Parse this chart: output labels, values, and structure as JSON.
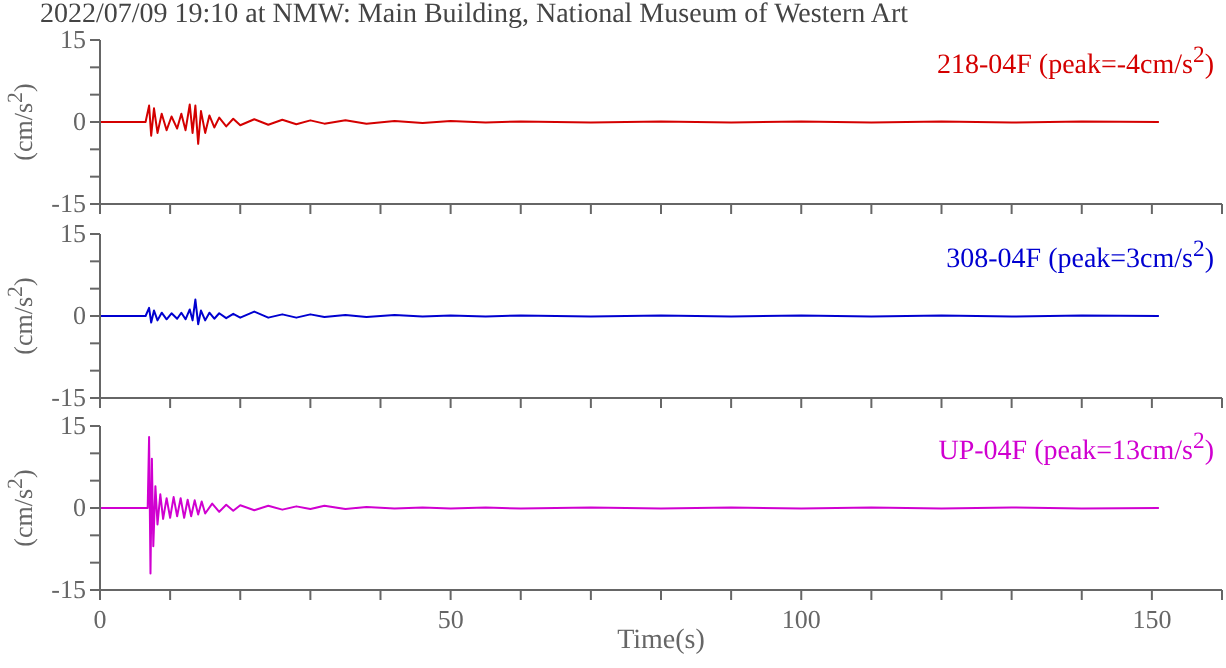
{
  "chart_data": [
    {
      "type": "line",
      "title": "2022/07/09 19:10 at NMW: Main Building, National Museum of Western Art",
      "ylabel": "(cm/s$^{2}$)",
      "xlim": [
        0,
        160
      ],
      "xticks": [
        0,
        {
          "value": 10,
          "label": null
        },
        {
          "value": 20,
          "label": null
        },
        {
          "value": 30,
          "label": null
        },
        {
          "value": 40,
          "label": null
        },
        50,
        {
          "value": 60,
          "label": null
        },
        {
          "value": 70,
          "label": null
        },
        {
          "value": 80,
          "label": null
        },
        {
          "value": 90,
          "label": null
        },
        100,
        {
          "value": 110,
          "label": null
        },
        {
          "value": 120,
          "label": null
        },
        {
          "value": 130,
          "label": null
        },
        {
          "value": 140,
          "label": null
        },
        150,
        {
          "value": 160,
          "label": null
        }
      ],
      "ylim": [
        -15,
        15
      ],
      "yticks": [
        -15,
        {
          "value": -10,
          "label": null
        },
        {
          "value": -5,
          "label": null
        },
        0,
        {
          "value": 5,
          "label": null
        },
        {
          "value": 10,
          "label": null
        },
        15
      ],
      "tick_labels": "y",
      "marker": "none",
      "line_style": "solid",
      "series": [
        {
          "name": "218-04F (peak=-4cm/s$^{2}$)",
          "color": "#d40000",
          "x": [
            0,
            6.5,
            7,
            7.3,
            7.7,
            8.2,
            8.8,
            9.5,
            10.2,
            11,
            11.6,
            12.2,
            12.8,
            13.2,
            13.6,
            14,
            14.4,
            15,
            15.6,
            16.3,
            17,
            18,
            19,
            20,
            22,
            24,
            26,
            28,
            30,
            32,
            35,
            38,
            42,
            46,
            50,
            55,
            60,
            70,
            80,
            90,
            100,
            110,
            120,
            130,
            140,
            151
          ],
          "values": [
            0,
            0,
            3,
            -2.5,
            2.5,
            -2,
            1.5,
            -1.5,
            1,
            -1.2,
            1.5,
            -1.5,
            3.2,
            -2,
            3,
            -4,
            2,
            -2,
            1.2,
            -1,
            0.8,
            -0.8,
            0.6,
            -0.6,
            0.5,
            -0.5,
            0.4,
            -0.4,
            0.3,
            -0.3,
            0.3,
            -0.3,
            0.2,
            -0.2,
            0.2,
            -0.1,
            0.1,
            -0.1,
            0.1,
            -0.1,
            0.1,
            -0.1,
            0.1,
            -0.1,
            0.1,
            0
          ]
        }
      ]
    },
    {
      "type": "line",
      "ylabel": "(cm/s$^{2}$)",
      "xlim": [
        0,
        160
      ],
      "xticks": [
        0,
        {
          "value": 10,
          "label": null
        },
        {
          "value": 20,
          "label": null
        },
        {
          "value": 30,
          "label": null
        },
        {
          "value": 40,
          "label": null
        },
        50,
        {
          "value": 60,
          "label": null
        },
        {
          "value": 70,
          "label": null
        },
        {
          "value": 80,
          "label": null
        },
        {
          "value": 90,
          "label": null
        },
        100,
        {
          "value": 110,
          "label": null
        },
        {
          "value": 120,
          "label": null
        },
        {
          "value": 130,
          "label": null
        },
        {
          "value": 140,
          "label": null
        },
        150,
        {
          "value": 160,
          "label": null
        }
      ],
      "ylim": [
        -15,
        15
      ],
      "yticks": [
        -15,
        {
          "value": -10,
          "label": null
        },
        {
          "value": -5,
          "label": null
        },
        0,
        {
          "value": 5,
          "label": null
        },
        {
          "value": 10,
          "label": null
        },
        15
      ],
      "tick_labels": "y",
      "marker": "none",
      "line_style": "solid",
      "series": [
        {
          "name": "308-04F (peak=3cm/s$^{2}$)",
          "color": "#0000d0",
          "x": [
            0,
            6.5,
            7,
            7.3,
            7.7,
            8.2,
            8.8,
            9.5,
            10.2,
            11,
            11.6,
            12.2,
            12.8,
            13.2,
            13.6,
            14,
            14.4,
            15,
            15.6,
            16.3,
            17,
            18,
            19,
            20,
            22,
            24,
            26,
            28,
            30,
            32,
            35,
            38,
            42,
            46,
            50,
            55,
            60,
            70,
            80,
            90,
            100,
            110,
            120,
            130,
            140,
            151
          ],
          "values": [
            0,
            0,
            1.5,
            -1.2,
            1,
            -0.8,
            0.6,
            -0.6,
            0.5,
            -0.5,
            0.6,
            -0.6,
            1.2,
            -0.8,
            3,
            -1.5,
            1,
            -0.8,
            0.6,
            -0.5,
            0.5,
            -0.4,
            0.4,
            -0.3,
            0.8,
            -0.3,
            0.3,
            -0.3,
            0.3,
            -0.2,
            0.2,
            -0.2,
            0.2,
            -0.1,
            0.1,
            -0.1,
            0.1,
            -0.1,
            0.1,
            -0.1,
            0.1,
            -0.1,
            0.1,
            -0.1,
            0.1,
            0
          ]
        }
      ]
    },
    {
      "type": "line",
      "ylabel": "(cm/s$^{2}$)",
      "xlabel": "Time(s)",
      "xlim": [
        0,
        160
      ],
      "xticks": [
        0,
        {
          "value": 10,
          "label": null
        },
        {
          "value": 20,
          "label": null
        },
        {
          "value": 30,
          "label": null
        },
        {
          "value": 40,
          "label": null
        },
        50,
        {
          "value": 60,
          "label": null
        },
        {
          "value": 70,
          "label": null
        },
        {
          "value": 80,
          "label": null
        },
        {
          "value": 90,
          "label": null
        },
        100,
        {
          "value": 110,
          "label": null
        },
        {
          "value": 120,
          "label": null
        },
        {
          "value": 130,
          "label": null
        },
        {
          "value": 140,
          "label": null
        },
        150,
        {
          "value": 160,
          "label": null
        }
      ],
      "ylim": [
        -15,
        15
      ],
      "yticks": [
        -15,
        {
          "value": -10,
          "label": null
        },
        {
          "value": -5,
          "label": null
        },
        0,
        {
          "value": 5,
          "label": null
        },
        {
          "value": 10,
          "label": null
        },
        15
      ],
      "marker": "none",
      "line_style": "solid",
      "series": [
        {
          "name": "UP-04F (peak=13cm/s$^{2}$)",
          "color": "#d000d0",
          "x": [
            0,
            6.8,
            7,
            7.2,
            7.4,
            7.6,
            7.9,
            8.2,
            8.6,
            9,
            9.5,
            10,
            10.5,
            11,
            11.5,
            12,
            12.5,
            13,
            13.5,
            14,
            14.5,
            15,
            16,
            17,
            18,
            19,
            20,
            22,
            24,
            26,
            28,
            30,
            32,
            35,
            38,
            42,
            46,
            50,
            55,
            60,
            70,
            80,
            90,
            100,
            110,
            120,
            130,
            140,
            151
          ],
          "values": [
            0,
            0,
            13,
            -12,
            9,
            -7,
            4,
            -3,
            2.5,
            -2,
            1.8,
            -1.8,
            2,
            -1.5,
            1.8,
            -1.8,
            1.5,
            -1.5,
            1.4,
            -1.2,
            1.2,
            -1,
            0.8,
            -0.7,
            0.6,
            -0.5,
            0.5,
            -0.4,
            0.4,
            -0.3,
            0.3,
            -0.2,
            0.4,
            -0.2,
            0.2,
            -0.1,
            0.1,
            -0.1,
            0.1,
            -0.1,
            0.1,
            -0.1,
            0.1,
            -0.1,
            0.1,
            -0.1,
            0.1,
            -0.1,
            0
          ]
        }
      ]
    }
  ]
}
